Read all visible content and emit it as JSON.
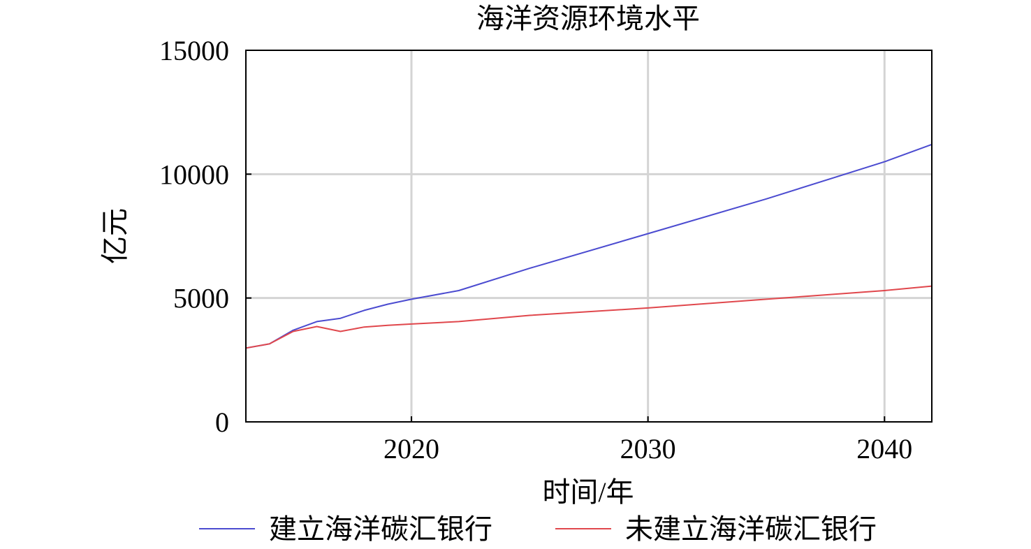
{
  "chart_data": {
    "type": "line",
    "title": "海洋资源环境水平",
    "xlabel": "时间/年",
    "ylabel": "亿元",
    "xlim": [
      2013,
      2042
    ],
    "ylim": [
      0,
      15000
    ],
    "x_ticks": [
      2020,
      2030,
      2040
    ],
    "x_tick_labels": [
      "2020",
      "2030",
      "2040"
    ],
    "y_ticks": [
      0,
      5000,
      10000,
      15000
    ],
    "y_tick_labels": [
      "0",
      "5000",
      "10000",
      "15000"
    ],
    "grid": true,
    "legend_position": "bottom",
    "series": [
      {
        "name": "建立海洋碳汇银行",
        "color": "#4b4bd0",
        "x": [
          2013,
          2014,
          2015,
          2016,
          2017,
          2018,
          2019,
          2020,
          2022,
          2025,
          2030,
          2035,
          2040,
          2042
        ],
        "values": [
          2980,
          3150,
          3700,
          4050,
          4180,
          4500,
          4750,
          4950,
          5300,
          6200,
          7600,
          9000,
          10500,
          11200
        ]
      },
      {
        "name": "未建立海洋碳汇银行",
        "color": "#e0474c",
        "x": [
          2013,
          2014,
          2015,
          2016,
          2017,
          2018,
          2019,
          2020,
          2022,
          2025,
          2030,
          2035,
          2040,
          2042
        ],
        "values": [
          2980,
          3150,
          3650,
          3850,
          3650,
          3830,
          3900,
          3950,
          4050,
          4300,
          4600,
          4950,
          5300,
          5480
        ]
      }
    ]
  }
}
